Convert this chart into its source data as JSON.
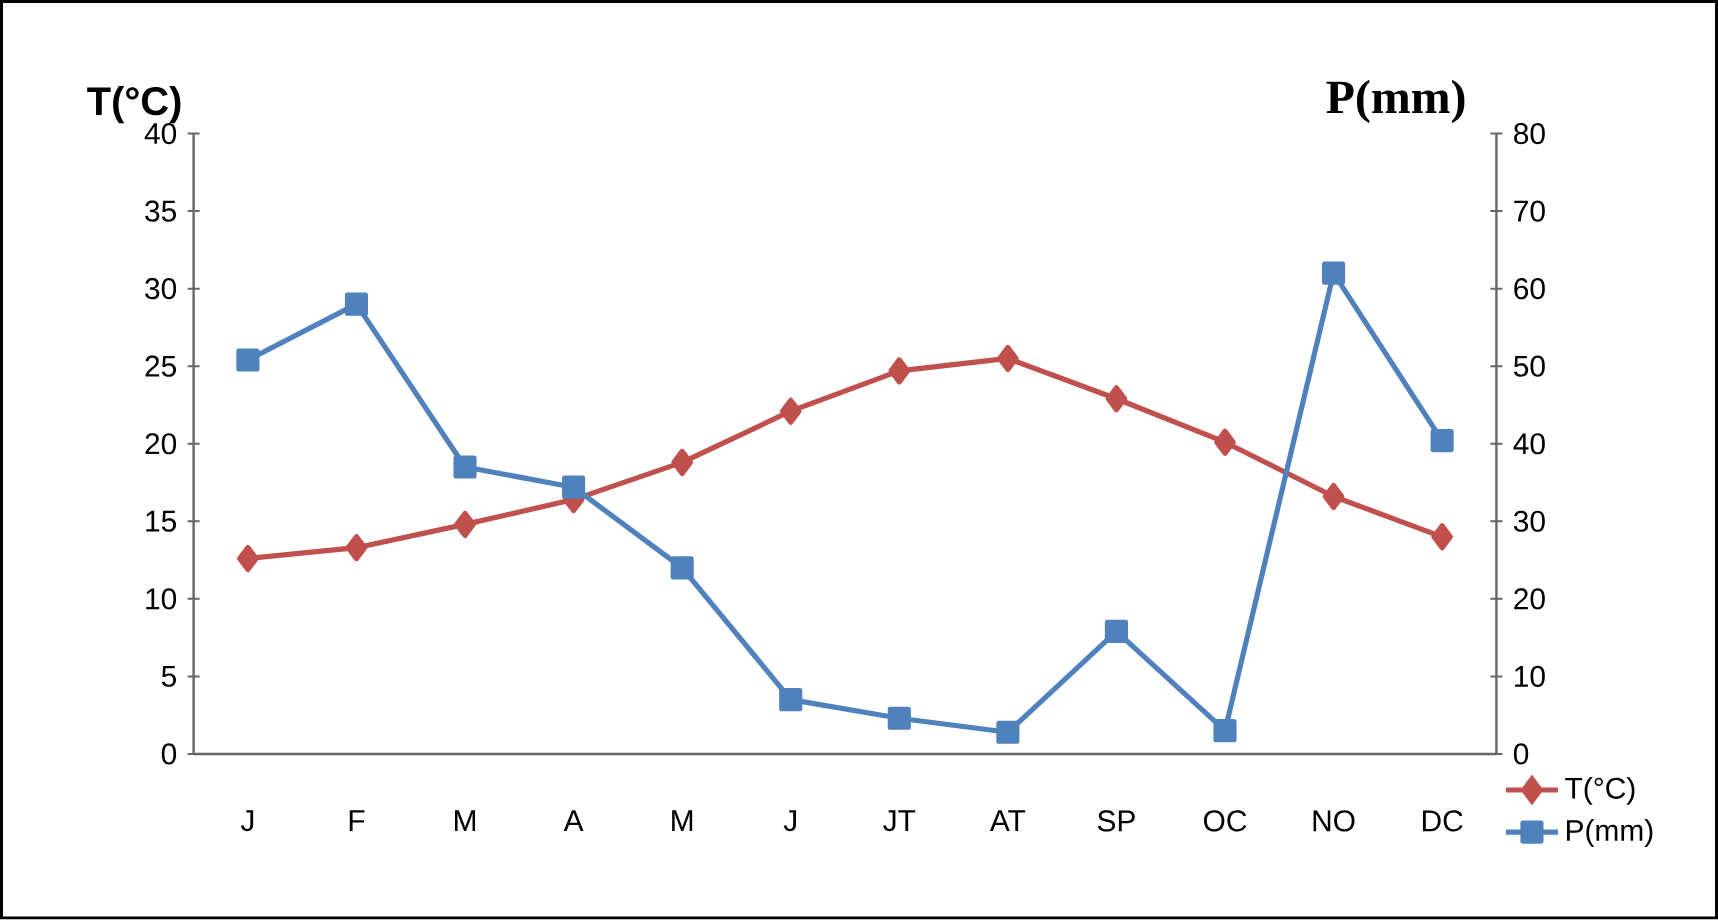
{
  "chart_data": {
    "type": "line",
    "categories": [
      "J",
      "F",
      "M",
      "A",
      "M",
      "J",
      "JT",
      "AT",
      "SP",
      "OC",
      "NO",
      "DC"
    ],
    "ylabel": "T(°C)",
    "y2label": "P(mm)",
    "ylim": [
      0,
      40
    ],
    "yticks": [
      0,
      5,
      10,
      15,
      20,
      25,
      30,
      35,
      40
    ],
    "y2lim": [
      0,
      80
    ],
    "y2ticks": [
      0,
      10,
      20,
      30,
      40,
      50,
      60,
      70,
      80
    ],
    "legend": "bottom right",
    "series": [
      {
        "name": "T(°C)",
        "color": "#c0504d",
        "marker": "diamond",
        "values": [
          12.6,
          13.3,
          14.8,
          16.4,
          18.8,
          22.1,
          24.7,
          25.5,
          22.9,
          20.1,
          16.6,
          14.0
        ]
      },
      {
        "name": "P(mm)",
        "color": "#4f81bd",
        "marker": "square",
        "axis": "y2",
        "values": [
          50.8,
          58,
          37,
          34.4,
          24,
          7,
          4.6,
          2.8,
          15.8,
          3,
          62,
          40.4
        ]
      }
    ]
  }
}
